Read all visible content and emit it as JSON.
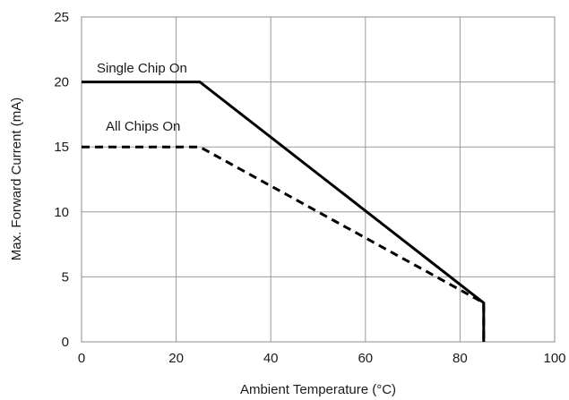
{
  "chart_data": {
    "type": "line",
    "xlabel": "Ambient Temperature (°C)",
    "ylabel": "Max. Forward Current (mA)",
    "xlim": [
      0,
      100
    ],
    "ylim": [
      0,
      25
    ],
    "xticks": [
      0,
      20,
      40,
      60,
      80,
      100
    ],
    "yticks": [
      0,
      5,
      10,
      15,
      20,
      25
    ],
    "grid": true,
    "series": [
      {
        "name": "Single Chip On",
        "style": "solid",
        "color": "#000000",
        "x": [
          0,
          25,
          85,
          85
        ],
        "y": [
          20,
          20,
          3,
          0
        ]
      },
      {
        "name": "All Chips On",
        "style": "dashed",
        "color": "#000000",
        "x": [
          0,
          25,
          85,
          85
        ],
        "y": [
          15,
          15,
          3,
          0
        ]
      }
    ]
  }
}
